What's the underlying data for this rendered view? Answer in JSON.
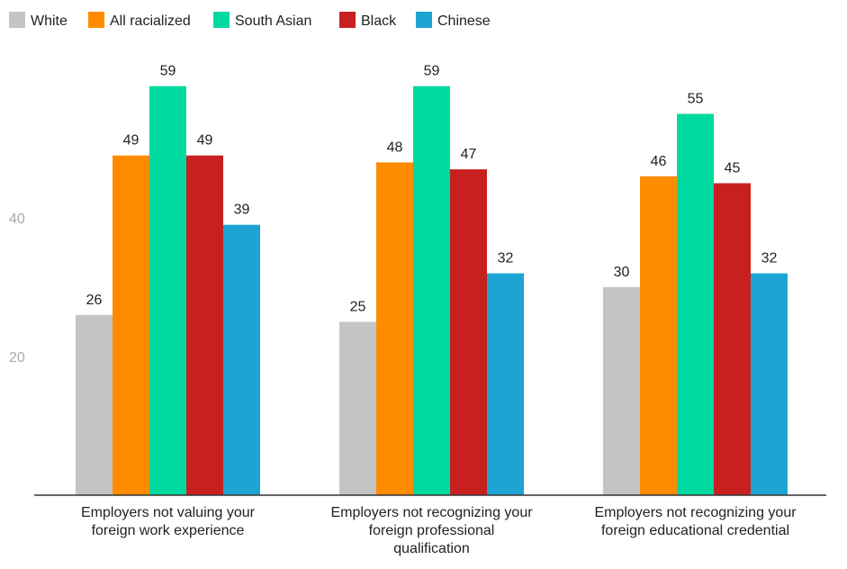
{
  "chart_data": {
    "type": "bar",
    "categories": [
      [
        "Employers not valuing your",
        "foreign work experience"
      ],
      [
        "Employers not recognizing your",
        "foreign professional",
        "qualification"
      ],
      [
        "Employers not recognizing your",
        "foreign educational credential"
      ]
    ],
    "series": [
      {
        "name": "White",
        "color": "#c4c4c4",
        "values": [
          26,
          25,
          30
        ]
      },
      {
        "name": "All racialized",
        "color": "#ff8c00",
        "values": [
          49,
          48,
          46
        ]
      },
      {
        "name": "South Asian",
        "color": "#00d9a0",
        "values": [
          59,
          59,
          55
        ]
      },
      {
        "name": "Black",
        "color": "#c8201f",
        "values": [
          49,
          47,
          45
        ]
      },
      {
        "name": "Chinese",
        "color": "#1ea4d2",
        "values": [
          39,
          32,
          32
        ]
      }
    ],
    "y_ticks": [
      20,
      40
    ],
    "ylim": [
      0,
      70
    ],
    "legend_position": "top-left",
    "grid": false
  }
}
